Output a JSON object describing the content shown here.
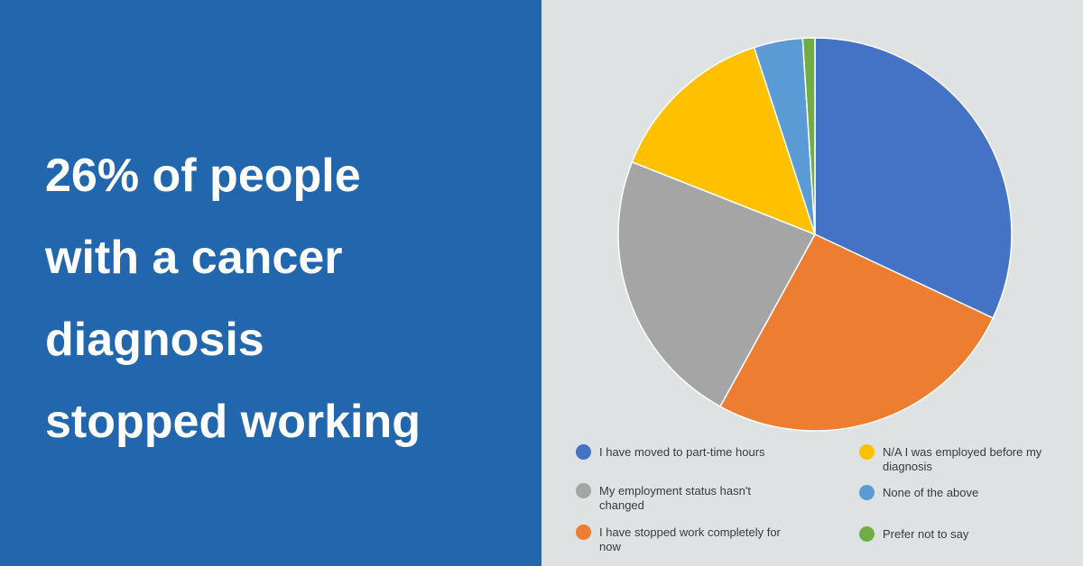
{
  "headline": [
    "26% of people",
    "with a cancer",
    "diagnosis",
    "stopped working"
  ],
  "chart_data": {
    "type": "pie",
    "categories": [
      "I have moved to part-time hours",
      "I have stopped work completely for now",
      "My employment status hasn't changed",
      "N/A I was employed before my diagnosis",
      "None of the above",
      "Prefer not to say"
    ],
    "values": [
      32,
      26,
      23,
      14,
      4,
      1
    ],
    "colors": [
      "#4472c4",
      "#ed7d31",
      "#a5a5a5",
      "#ffc000",
      "#5b9bd5",
      "#70ad47"
    ]
  }
}
